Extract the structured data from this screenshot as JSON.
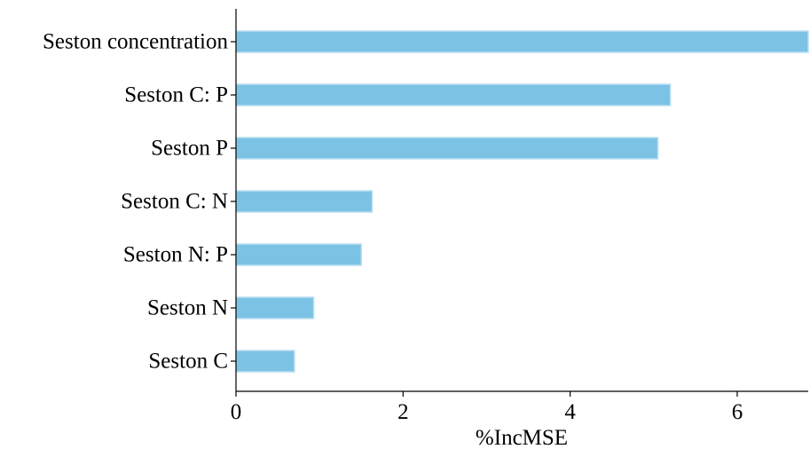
{
  "chart_data": {
    "type": "bar",
    "orientation": "horizontal",
    "categories": [
      "Seston concentration",
      "Seston C: P",
      "Seston P",
      "Seston C: N",
      "Seston N: P",
      "Seston N",
      "Seston C"
    ],
    "values": [
      6.85,
      5.2,
      5.05,
      1.63,
      1.5,
      0.93,
      0.7
    ],
    "xlabel": "%IncMSE",
    "ylabel": "",
    "title": "",
    "xlim": [
      0,
      6.85
    ],
    "xticks": [
      0,
      2,
      4,
      6
    ],
    "grid": false,
    "legend": false,
    "colors": {
      "bar_fill": "#7bc2e5",
      "bar_edge": "#b9dff1",
      "axis": "#000000"
    }
  }
}
